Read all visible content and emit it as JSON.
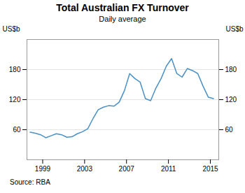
{
  "chart_data": {
    "type": "line",
    "title": "Total Australian FX Turnover",
    "subtitle": "Daily average",
    "ylabel": "US$b",
    "y2label": "US$b",
    "source": "Source:   RBA",
    "color": "#4a90c4",
    "x": [
      1997.8,
      1998.3,
      1998.8,
      1999.3,
      1999.8,
      2000.3,
      2000.8,
      2001.3,
      2001.8,
      2002.3,
      2002.8,
      2003.3,
      2003.8,
      2004.3,
      2004.8,
      2005.3,
      2005.8,
      2006.3,
      2006.8,
      2007.3,
      2007.8,
      2008.3,
      2008.8,
      2009.3,
      2009.8,
      2010.3,
      2010.8,
      2011.3,
      2011.8,
      2012.3,
      2012.8,
      2013.3,
      2013.8,
      2014.3,
      2014.8,
      2015.3
    ],
    "values": [
      55,
      53,
      50,
      44,
      48,
      52,
      50,
      45,
      46,
      52,
      56,
      62,
      82,
      100,
      105,
      108,
      107,
      115,
      138,
      172,
      162,
      155,
      122,
      118,
      143,
      162,
      187,
      202,
      172,
      165,
      182,
      178,
      172,
      147,
      125,
      122
    ],
    "xlim": [
      1997.5,
      2015.8
    ],
    "xticks": [
      1999,
      2003,
      2007,
      2011,
      2015
    ],
    "ylim": [
      0,
      240
    ],
    "yticks": [
      60,
      120,
      180
    ],
    "grid": true
  }
}
